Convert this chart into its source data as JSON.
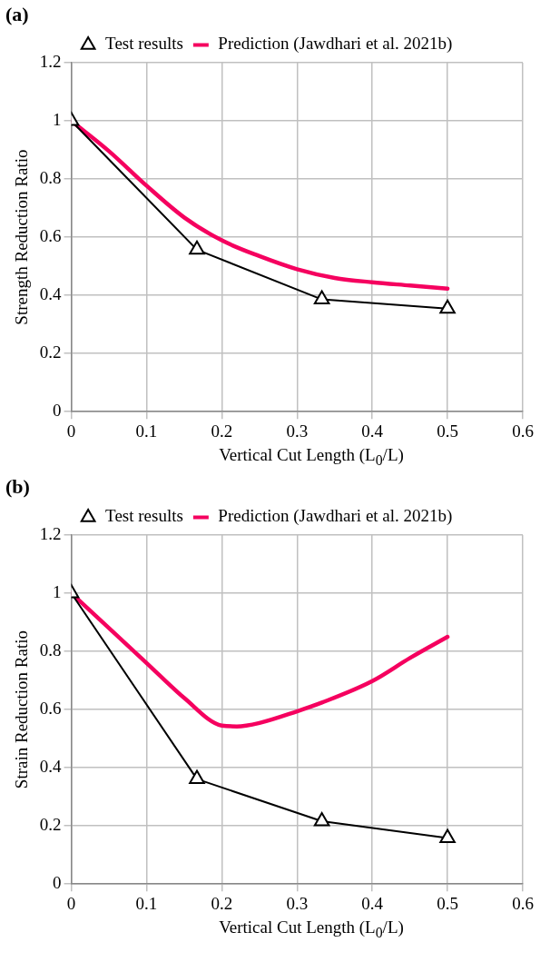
{
  "chart_data": [
    {
      "type": "line",
      "xlabel": "Vertical Cut Length (L$_{0}$/L)",
      "ylabel": "Strength Reduction Ratio",
      "annotations": [
        "(a)"
      ],
      "xlim": [
        0,
        0.6
      ],
      "xticks": [
        0,
        0.1,
        0.2,
        0.3,
        0.4,
        0.5,
        0.6
      ],
      "ylim": [
        0,
        1.2
      ],
      "yticks": [
        0,
        0.2,
        0.4,
        0.6,
        0.8,
        1,
        1.2
      ],
      "grid": true,
      "legend": "top",
      "series": [
        {
          "name": "Test results",
          "color": "#000000",
          "marker": "triangle",
          "x": [
            0,
            0.167,
            0.333,
            0.5
          ],
          "values": [
            1,
            0.557,
            0.386,
            0.354
          ]
        },
        {
          "name": "Prediction (Jawdhari et al. 2021b)",
          "color": "#f5005f",
          "marker": "none",
          "x": [
            0,
            0.05,
            0.1,
            0.15,
            0.2,
            0.25,
            0.3,
            0.35,
            0.4,
            0.45,
            0.5
          ],
          "values": [
            1,
            0.896,
            0.777,
            0.668,
            0.589,
            0.535,
            0.49,
            0.46,
            0.445,
            0.434,
            0.423
          ]
        }
      ]
    },
    {
      "type": "line",
      "xlabel": "Vertical Cut Length (L$_{0}$/L)",
      "ylabel": "Strain Reduction Ratio",
      "annotations": [
        "(b)"
      ],
      "xlim": [
        0,
        0.6
      ],
      "xticks": [
        0,
        0.1,
        0.2,
        0.3,
        0.4,
        0.5,
        0.6
      ],
      "ylim": [
        0,
        1.2
      ],
      "yticks": [
        0,
        0.2,
        0.4,
        0.6,
        0.8,
        1,
        1.2
      ],
      "grid": true,
      "legend": "top",
      "series": [
        {
          "name": "Test results",
          "color": "#000000",
          "marker": "triangle",
          "x": [
            0,
            0.167,
            0.333,
            0.5
          ],
          "values": [
            1,
            0.361,
            0.216,
            0.158
          ]
        },
        {
          "name": "Prediction (Jawdhari et al. 2021b)",
          "color": "#f5005f",
          "marker": "none",
          "x": [
            0,
            0.05,
            0.1,
            0.15,
            0.2,
            0.22,
            0.25,
            0.3,
            0.333,
            0.4,
            0.45,
            0.5
          ],
          "values": [
            1,
            0.88,
            0.76,
            0.64,
            0.545,
            0.542,
            0.554,
            0.594,
            0.624,
            0.698,
            0.777,
            0.85
          ]
        }
      ]
    }
  ]
}
